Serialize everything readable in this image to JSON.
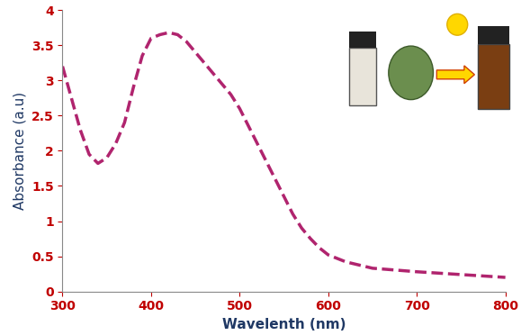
{
  "chart_data": {
    "type": "line",
    "x": [
      300,
      310,
      320,
      330,
      340,
      350,
      360,
      370,
      380,
      390,
      400,
      410,
      420,
      430,
      440,
      450,
      460,
      470,
      480,
      490,
      500,
      510,
      520,
      530,
      540,
      550,
      560,
      570,
      580,
      590,
      600,
      620,
      650,
      700,
      750,
      800
    ],
    "values": [
      3.2,
      2.75,
      2.3,
      1.95,
      1.82,
      1.9,
      2.1,
      2.4,
      2.9,
      3.35,
      3.6,
      3.65,
      3.68,
      3.65,
      3.55,
      3.4,
      3.25,
      3.1,
      2.95,
      2.8,
      2.6,
      2.35,
      2.1,
      1.85,
      1.6,
      1.35,
      1.1,
      0.9,
      0.75,
      0.62,
      0.52,
      0.42,
      0.33,
      0.28,
      0.24,
      0.2
    ],
    "x_label": "Wavelenth (nm)",
    "y_label": "Absorbance (a.u)",
    "xlim": [
      300,
      800
    ],
    "xticks": [
      300,
      400,
      500,
      600,
      700,
      800
    ],
    "ylim": [
      0,
      4
    ],
    "yticks": [
      0,
      0.5,
      1,
      1.5,
      2,
      2.5,
      3,
      3.5,
      4
    ],
    "color": "#b0246e",
    "line_style": "dashed",
    "grid": false
  }
}
